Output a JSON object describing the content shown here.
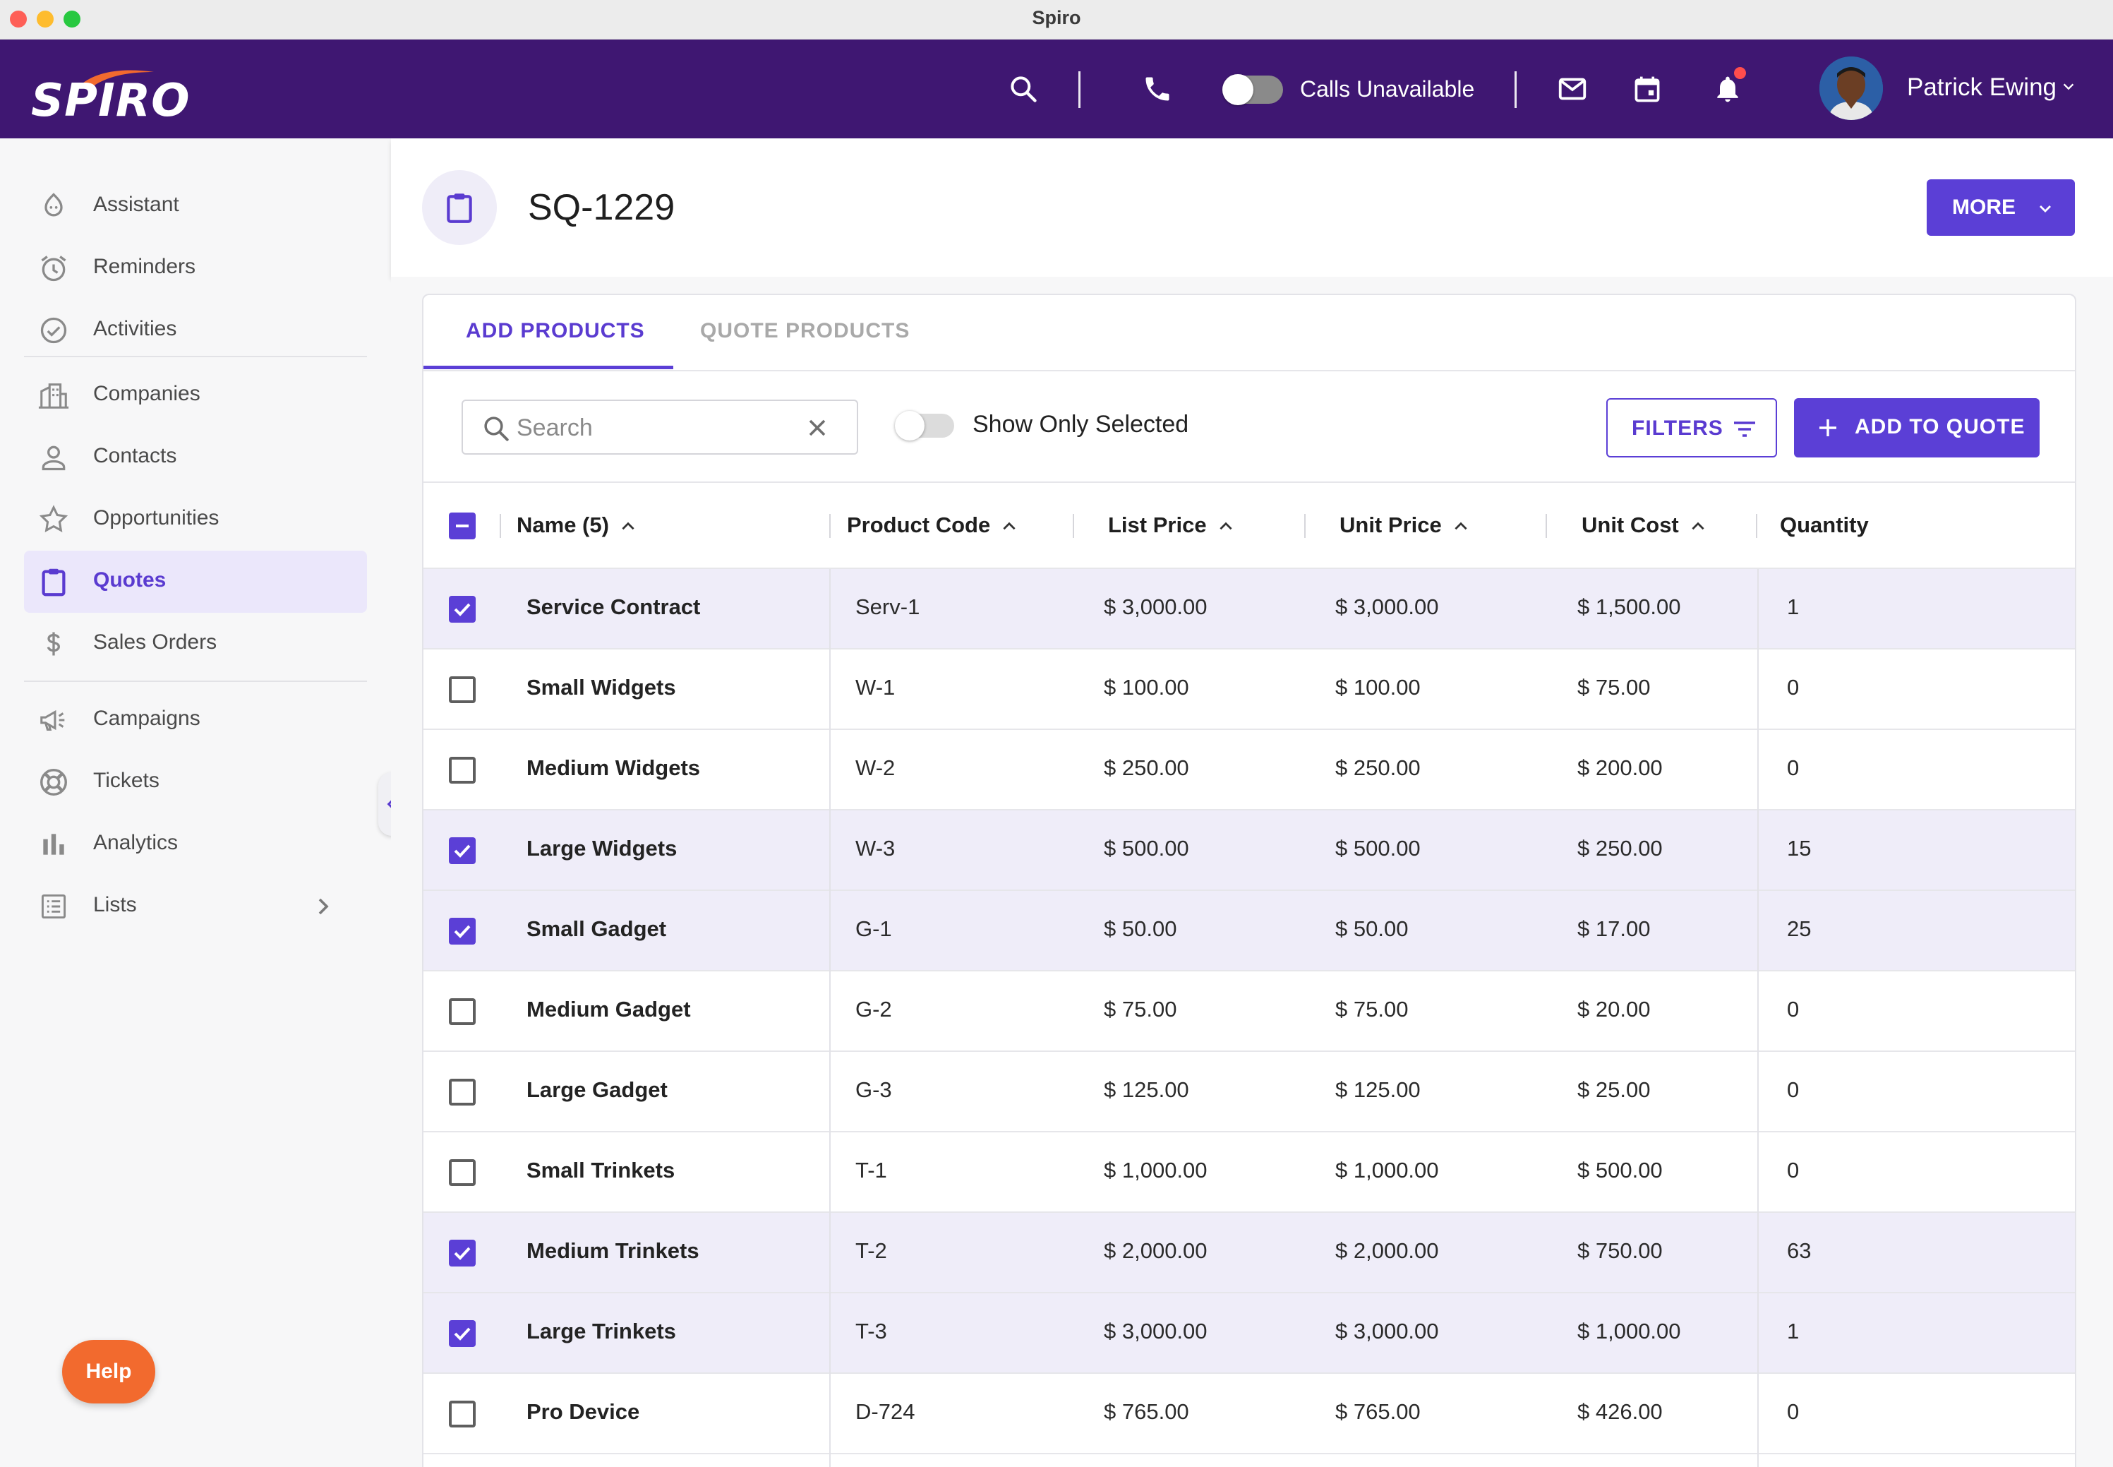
{
  "window": {
    "title": "Spiro"
  },
  "topnav": {
    "logo": "SPIRO",
    "calls_label": "Calls Unavailable",
    "user_name": "Patrick Ewing",
    "icons": [
      "search-icon",
      "phone-icon",
      "mail-icon",
      "calendar-icon",
      "bell-icon",
      "chevron-down-icon"
    ]
  },
  "sidebar": {
    "items": [
      {
        "label": "Assistant",
        "icon": "assistant-icon"
      },
      {
        "label": "Reminders",
        "icon": "alarm-clock-icon"
      },
      {
        "label": "Activities",
        "icon": "check-circle-icon"
      },
      {
        "label": "Companies",
        "icon": "building-icon"
      },
      {
        "label": "Contacts",
        "icon": "person-icon"
      },
      {
        "label": "Opportunities",
        "icon": "star-icon"
      },
      {
        "label": "Quotes",
        "icon": "clipboard-icon",
        "active": true
      },
      {
        "label": "Sales Orders",
        "icon": "dollar-icon"
      },
      {
        "label": "Campaigns",
        "icon": "megaphone-icon"
      },
      {
        "label": "Tickets",
        "icon": "lifebuoy-icon"
      },
      {
        "label": "Analytics",
        "icon": "bar-chart-icon"
      },
      {
        "label": "Lists",
        "icon": "list-icon"
      }
    ],
    "help_label": "Help"
  },
  "header": {
    "title": "SQ-1229",
    "more_label": "MORE"
  },
  "tabs": [
    {
      "label": "ADD PRODUCTS",
      "active": true
    },
    {
      "label": "QUOTE PRODUCTS",
      "active": false
    }
  ],
  "toolbar": {
    "search_placeholder": "Search",
    "show_selected_label": "Show Only Selected",
    "filters_label": "FILTERS",
    "add_to_quote_label": "ADD TO QUOTE"
  },
  "table": {
    "columns": [
      "Name (5)",
      "Product Code",
      "List Price",
      "Unit Price",
      "Unit Cost",
      "Quantity"
    ],
    "rows": [
      {
        "selected": true,
        "name": "Service Contract",
        "code": "Serv-1",
        "list_price": "$ 3,000.00",
        "unit_price": "$ 3,000.00",
        "unit_cost": "$ 1,500.00",
        "quantity": "1"
      },
      {
        "selected": false,
        "name": "Small Widgets",
        "code": "W-1",
        "list_price": "$ 100.00",
        "unit_price": "$ 100.00",
        "unit_cost": "$ 75.00",
        "quantity": "0"
      },
      {
        "selected": false,
        "name": "Medium Widgets",
        "code": "W-2",
        "list_price": "$ 250.00",
        "unit_price": "$ 250.00",
        "unit_cost": "$ 200.00",
        "quantity": "0"
      },
      {
        "selected": true,
        "name": "Large Widgets",
        "code": "W-3",
        "list_price": "$ 500.00",
        "unit_price": "$ 500.00",
        "unit_cost": "$ 250.00",
        "quantity": "15"
      },
      {
        "selected": true,
        "name": "Small Gadget",
        "code": "G-1",
        "list_price": "$ 50.00",
        "unit_price": "$ 50.00",
        "unit_cost": "$ 17.00",
        "quantity": "25"
      },
      {
        "selected": false,
        "name": "Medium Gadget",
        "code": "G-2",
        "list_price": "$ 75.00",
        "unit_price": "$ 75.00",
        "unit_cost": "$ 20.00",
        "quantity": "0"
      },
      {
        "selected": false,
        "name": "Large Gadget",
        "code": "G-3",
        "list_price": "$ 125.00",
        "unit_price": "$ 125.00",
        "unit_cost": "$ 25.00",
        "quantity": "0"
      },
      {
        "selected": false,
        "name": "Small Trinkets",
        "code": "T-1",
        "list_price": "$ 1,000.00",
        "unit_price": "$ 1,000.00",
        "unit_cost": "$ 500.00",
        "quantity": "0"
      },
      {
        "selected": true,
        "name": "Medium Trinkets",
        "code": "T-2",
        "list_price": "$ 2,000.00",
        "unit_price": "$ 2,000.00",
        "unit_cost": "$ 750.00",
        "quantity": "63"
      },
      {
        "selected": true,
        "name": "Large Trinkets",
        "code": "T-3",
        "list_price": "$ 3,000.00",
        "unit_price": "$ 3,000.00",
        "unit_cost": "$ 1,000.00",
        "quantity": "1"
      },
      {
        "selected": false,
        "name": "Pro Device",
        "code": "D-724",
        "list_price": "$ 765.00",
        "unit_price": "$ 765.00",
        "unit_cost": "$ 426.00",
        "quantity": "0"
      }
    ]
  },
  "colors": {
    "nav_bg": "#3f1772",
    "accent": "#5b3fd6",
    "help": "#f26a2e",
    "selected_row": "#efedf9"
  }
}
